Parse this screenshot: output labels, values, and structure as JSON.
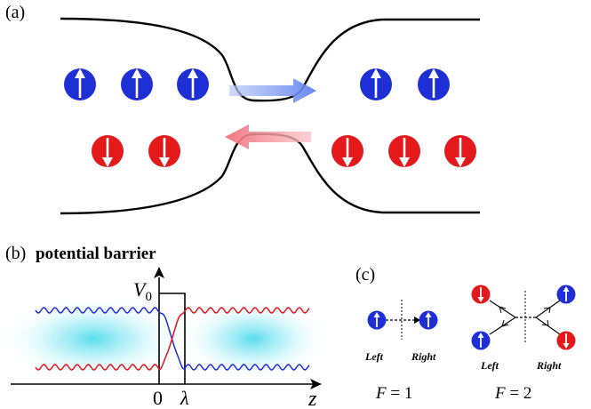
{
  "panels": {
    "a": {
      "label": "(a)"
    },
    "b": {
      "label": "(b)",
      "title": "potential barrier",
      "barrier_label": "V",
      "barrier_subscript": "0",
      "tick_zero": "0",
      "tick_lambda": "λ",
      "axis_label": "z"
    },
    "c": {
      "label": "(c)",
      "left_label": "Left",
      "right_label": "Right",
      "f1_italic": "F",
      "f1_rest": " = 1",
      "f2_italic": "F",
      "f2_rest": " = 2"
    }
  },
  "colors": {
    "spin_up": "#1f2fd6",
    "spin_down": "#e3191b",
    "arrow_right_flow": "#6f8ff0",
    "arrow_left_flow": "#f27d86",
    "glow": "#38d4e8"
  }
}
